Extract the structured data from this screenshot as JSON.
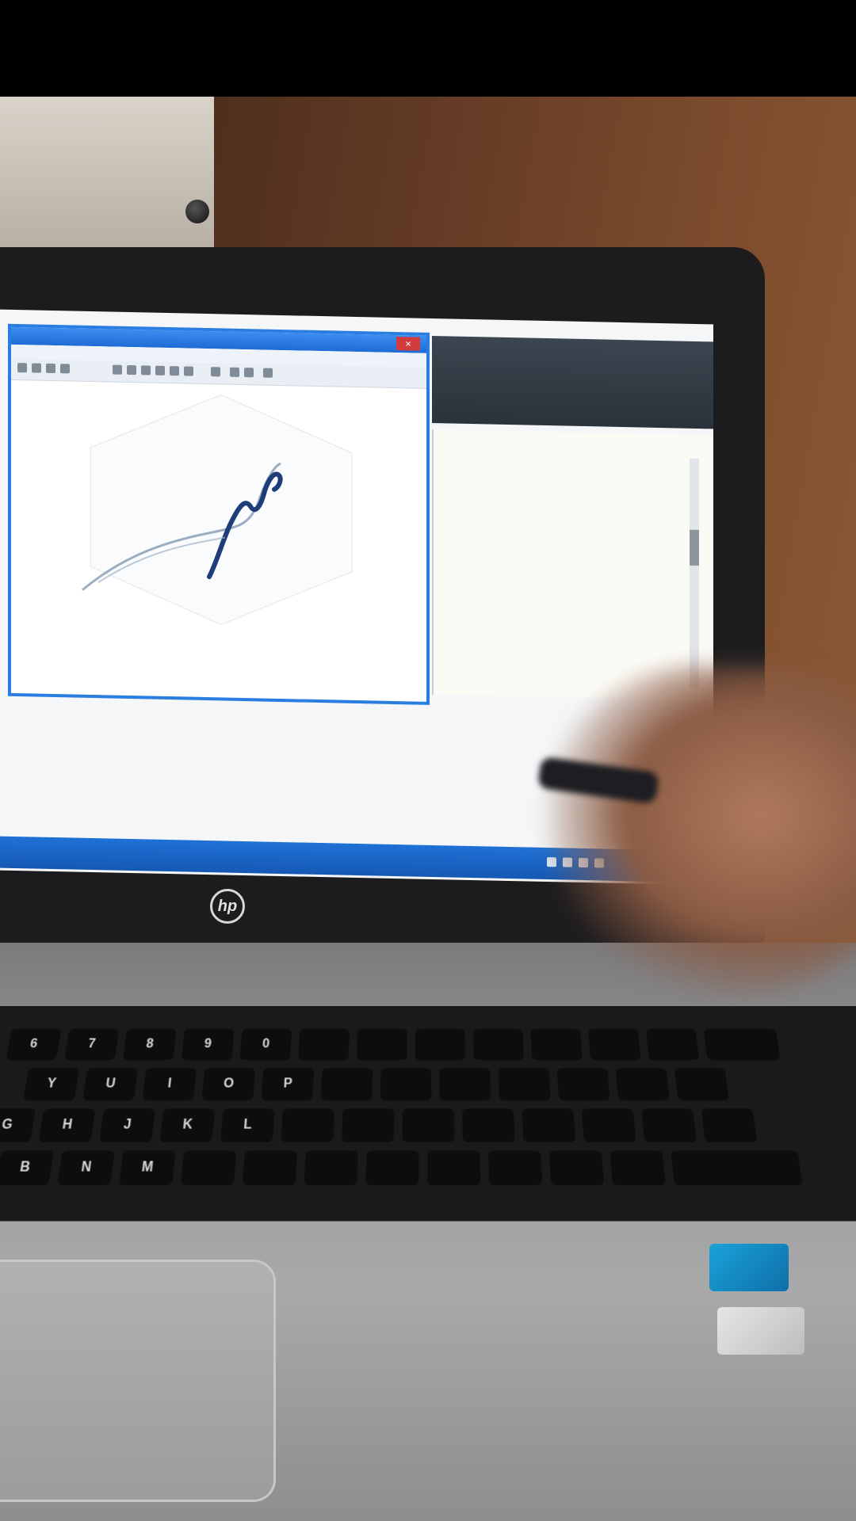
{
  "scene": {
    "description_labels": {
      "laptop_brand": "hp",
      "keyboard_row1": [
        "6",
        "7",
        "8",
        "9",
        "0"
      ],
      "keyboard_row2": [
        "Y",
        "U",
        "I",
        "O",
        "P"
      ],
      "keyboard_row3": [
        "G",
        "H",
        "J",
        "K",
        "L"
      ],
      "keyboard_row4": [
        "B",
        "N",
        "M"
      ]
    }
  },
  "screen": {
    "figure_close_label": "×"
  }
}
